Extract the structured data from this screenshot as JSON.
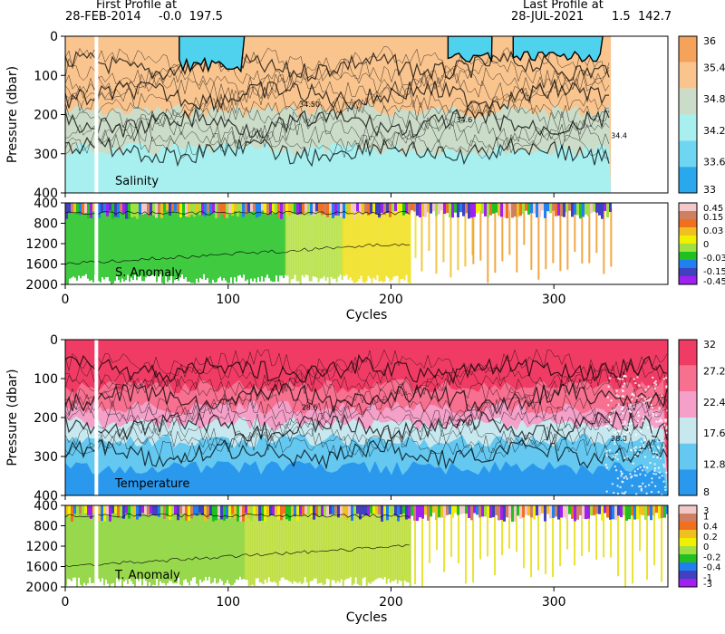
{
  "header": {
    "first_title": "First Profile at",
    "first_date": "28-FEB-2014",
    "first_pos": "-0.0  197.5",
    "last_title": "Last Profile at",
    "last_date": "28-JUL-2021",
    "last_pos": "1.5  142.7"
  },
  "chart_data": [
    {
      "type": "heatmap",
      "panel": "Salinity",
      "ylabel": "Pressure (dbar)",
      "xlabel": "",
      "xlim": [
        0,
        370
      ],
      "ylim": [
        400,
        0
      ],
      "x_ticks": [
        0,
        100,
        200,
        300
      ],
      "y_ticks": [
        0,
        100,
        200,
        300,
        400
      ],
      "colorbar_labels": [
        "36",
        "35.4",
        "34.8",
        "34.2",
        "33.6",
        "33"
      ],
      "colorbar_colors": [
        "#f5a35a",
        "#f9c48e",
        "#cbdcc8",
        "#a8f0f0",
        "#6ed6f0",
        "#2aa8ee"
      ],
      "contour_labels": [
        "34.50",
        "34.6",
        "34.4"
      ],
      "bands": [
        {
          "top": 0,
          "bottom": 190,
          "color": "#f9c48e"
        },
        {
          "top": 190,
          "bottom": 290,
          "color": "#cbdcc8"
        },
        {
          "top": 290,
          "bottom": 400,
          "color": "#a8f0f0"
        }
      ],
      "low_salinity_patches": [
        {
          "x0": 70,
          "x1": 110,
          "depth": 90
        },
        {
          "x0": 235,
          "x1": 262,
          "depth": 70
        },
        {
          "x0": 275,
          "x1": 330,
          "depth": 65
        }
      ],
      "data_end_cycle": 335
    },
    {
      "type": "heatmap",
      "panel": "S. Anomaly",
      "xlabel": "Cycles",
      "xlim": [
        0,
        370
      ],
      "ylim": [
        2000,
        400
      ],
      "x_ticks": [
        0,
        100,
        200,
        300
      ],
      "y_ticks": [
        400,
        800,
        1200,
        1600,
        2000
      ],
      "colorbar_labels": [
        "0.45",
        "0.15",
        "0.03",
        "0",
        "-0.03",
        "-0.15",
        "-0.45"
      ],
      "colorbar_colors": [
        "#f3c8c8",
        "#d08060",
        "#f07020",
        "#f0c020",
        "#f0f000",
        "#a0e040",
        "#20c020",
        "#2080f0",
        "#4040c0",
        "#a020f0"
      ],
      "segments": [
        {
          "x0": 0,
          "x1": 135,
          "color": "#2ac42a"
        },
        {
          "x0": 135,
          "x1": 170,
          "color": "#b4e040"
        },
        {
          "x0": 170,
          "x1": 215,
          "color": "#f0e020"
        },
        {
          "x0": 215,
          "x1": 250,
          "color": "#f0c030"
        },
        {
          "x0": 250,
          "x1": 335,
          "color": "#f0a030"
        }
      ],
      "sparse_after_cycle": 212,
      "data_end_cycle": 335
    },
    {
      "type": "heatmap",
      "panel": "Temperature",
      "ylabel": "Pressure (dbar)",
      "xlabel": "",
      "xlim": [
        0,
        370
      ],
      "ylim": [
        400,
        0
      ],
      "x_ticks": [
        0,
        100,
        200,
        300
      ],
      "y_ticks": [
        0,
        100,
        200,
        300,
        400
      ],
      "colorbar_labels": [
        "32",
        "27.2",
        "22.4",
        "17.6",
        "12.8",
        "8"
      ],
      "colorbar_colors": [
        "#f03c64",
        "#f87090",
        "#f4a0c8",
        "#c8e8f0",
        "#64c8f0",
        "#2a98ec"
      ],
      "contour_labels": [
        "28.6",
        "27.0",
        "28.8"
      ],
      "bands": [
        {
          "top": 0,
          "bottom": 120,
          "color": "#f03c64"
        },
        {
          "top": 120,
          "bottom": 175,
          "color": "#f87090"
        },
        {
          "top": 175,
          "bottom": 215,
          "color": "#f4a0c8"
        },
        {
          "top": 215,
          "bottom": 260,
          "color": "#c8e8f0"
        },
        {
          "top": 260,
          "bottom": 330,
          "color": "#64c8f0"
        },
        {
          "top": 330,
          "bottom": 400,
          "color": "#2a98ec"
        }
      ],
      "data_end_cycle": 370
    },
    {
      "type": "heatmap",
      "panel": "T. Anomaly",
      "xlabel": "Cycles",
      "xlim": [
        0,
        370
      ],
      "ylim": [
        2000,
        400
      ],
      "x_ticks": [
        0,
        100,
        200,
        300
      ],
      "y_ticks": [
        400,
        800,
        1200,
        1600,
        2000
      ],
      "colorbar_labels": [
        "3",
        "1",
        "0.4",
        "0.2",
        "0",
        "-0.2",
        "-0.4",
        "-1",
        "-3"
      ],
      "colorbar_colors": [
        "#f3c8c8",
        "#d08060",
        "#f07020",
        "#f0c020",
        "#f0f000",
        "#a0e040",
        "#20c020",
        "#2080f0",
        "#4040c0",
        "#a020f0"
      ],
      "segments": [
        {
          "x0": 0,
          "x1": 110,
          "color": "#8cd43a"
        },
        {
          "x0": 110,
          "x1": 212,
          "color": "#b8dc30"
        },
        {
          "x0": 212,
          "x1": 370,
          "color": "#e8e020"
        }
      ],
      "sparse_after_cycle": 212,
      "data_end_cycle": 370
    }
  ]
}
